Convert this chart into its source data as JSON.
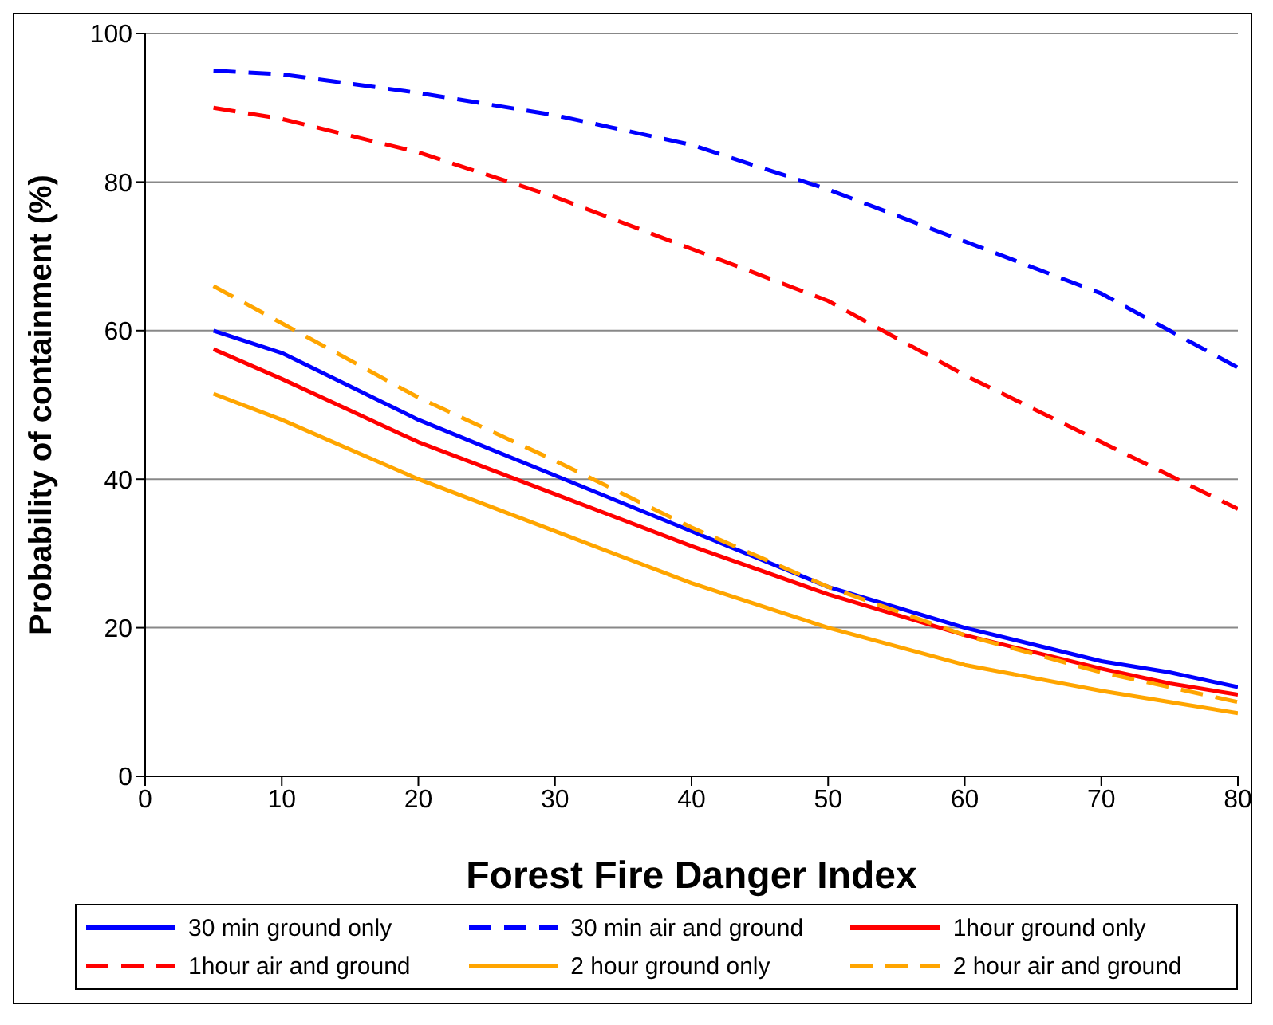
{
  "chart_data": {
    "type": "line",
    "xlabel": "Forest Fire Danger Index",
    "ylabel": "Probability of containment (%)",
    "x": [
      5,
      10,
      20,
      30,
      40,
      50,
      60,
      70,
      75,
      80
    ],
    "xlim": [
      0,
      80
    ],
    "xticks": [
      0,
      10,
      20,
      30,
      40,
      50,
      60,
      70,
      80
    ],
    "ylim": [
      0,
      100
    ],
    "yticks": [
      0,
      20,
      40,
      60,
      80,
      100
    ],
    "grid": "y",
    "legend": "bottom",
    "marker": "none",
    "series": [
      {
        "name": "30 min ground only",
        "color": "#0000ff",
        "line_style": "solid",
        "values": [
          60,
          57,
          48,
          40.5,
          33,
          25.5,
          20,
          15.5,
          14,
          12
        ]
      },
      {
        "name": "30 min air and ground",
        "color": "#0000ff",
        "line_style": "dashed",
        "values": [
          95,
          94.5,
          92,
          89,
          85,
          79,
          72,
          65,
          60,
          55
        ]
      },
      {
        "name": "1hour ground only",
        "color": "#ff0000",
        "line_style": "solid",
        "values": [
          57.5,
          53.5,
          45,
          38,
          31,
          24.5,
          19,
          14.5,
          12.5,
          11
        ]
      },
      {
        "name": "1hour air and ground",
        "color": "#ff0000",
        "line_style": "dashed",
        "values": [
          90,
          88.5,
          84,
          78,
          71,
          64,
          54,
          45,
          40.5,
          36
        ]
      },
      {
        "name": "2 hour ground only",
        "color": "#ffa500",
        "line_style": "solid",
        "values": [
          51.5,
          48,
          40,
          33,
          26,
          20,
          15,
          11.5,
          10,
          8.5
        ]
      },
      {
        "name": "2 hour air and ground",
        "color": "#ffa500",
        "line_style": "dashed",
        "values": [
          66,
          61,
          51,
          42.5,
          33.5,
          25.5,
          19,
          14,
          12,
          10
        ]
      }
    ]
  }
}
